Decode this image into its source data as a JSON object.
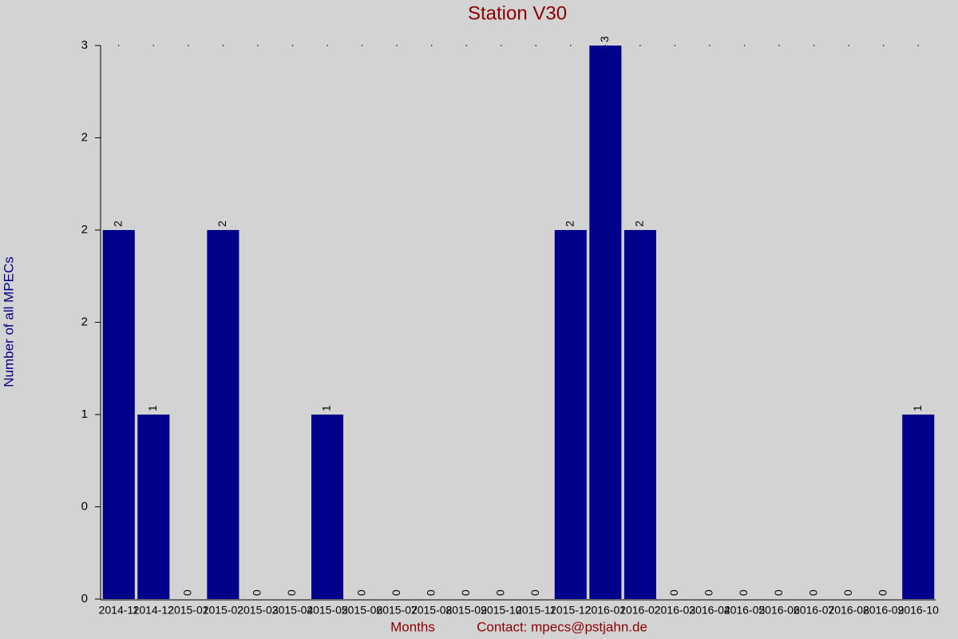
{
  "chart_data": {
    "type": "bar",
    "title": "Station V30",
    "x_label": "Months",
    "y_label": "Number of all MPECs",
    "note": "Contact: mpecs@pstjahn.de",
    "categories": [
      "2014-11",
      "2014-12",
      "2015-01",
      "2015-02",
      "2015-03",
      "2015-04",
      "2015-05",
      "2015-06",
      "2015-07",
      "2015-08",
      "2015-09",
      "2015-10",
      "2015-11",
      "2015-12",
      "2016-01",
      "2016-02",
      "2016-03",
      "2016-04",
      "2016-05",
      "2016-06",
      "2016-07",
      "2016-08",
      "2016-09",
      "2016-10"
    ],
    "values": [
      2,
      1,
      0,
      2,
      0,
      0,
      1,
      0,
      0,
      0,
      0,
      0,
      0,
      2,
      3,
      2,
      0,
      0,
      0,
      0,
      0,
      0,
      0,
      1
    ],
    "color": "#00008b",
    "ylim": [
      0,
      3
    ],
    "yticks": [
      0,
      {
        "value": 0.5,
        "label": "0"
      },
      1,
      {
        "value": 1.5,
        "label": "2"
      },
      2,
      {
        "value": 2.5,
        "label": "2"
      },
      3
    ]
  }
}
